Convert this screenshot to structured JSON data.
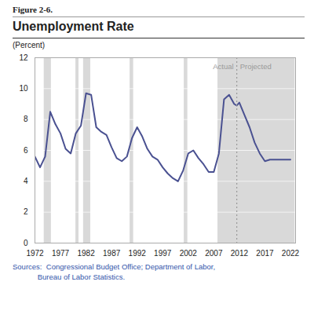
{
  "chart_data": {
    "type": "line",
    "title": "Unemployment Rate",
    "ylabel": "(Percent)",
    "annotations": [
      {
        "text": "Figure 2-6."
      },
      {
        "text": "Actual",
        "x": 2011.5,
        "y": 11.6,
        "anchor": "end"
      },
      {
        "text": "Projected",
        "x": 2011.5,
        "y": 11.6,
        "anchor": "start"
      }
    ],
    "caption": [
      "Sources:  Congressional Budget Office; Department of Labor,",
      "            Bureau of Labor Statistics."
    ],
    "x": [
      1972,
      1973,
      1974,
      1975,
      1976,
      1977,
      1978,
      1979,
      1980,
      1981,
      1982,
      1983,
      1984,
      1985,
      1986,
      1987,
      1988,
      1989,
      1990,
      1991,
      1992,
      1993,
      1994,
      1995,
      1996,
      1997,
      1998,
      1999,
      2000,
      2001,
      2002,
      2003,
      2004,
      2005,
      2006,
      2007,
      2008,
      2009,
      2010,
      2011,
      2011.5,
      2012,
      2013,
      2014,
      2015,
      2016,
      2017,
      2018,
      2019,
      2020,
      2021,
      2022
    ],
    "values": [
      5.6,
      4.9,
      5.6,
      8.5,
      7.7,
      7.1,
      6.1,
      5.8,
      7.1,
      7.6,
      9.7,
      9.6,
      7.5,
      7.2,
      7.0,
      6.2,
      5.5,
      5.3,
      5.6,
      6.8,
      7.5,
      6.9,
      6.1,
      5.6,
      5.4,
      4.9,
      4.5,
      4.2,
      4.0,
      4.7,
      5.8,
      6.0,
      5.5,
      5.1,
      4.6,
      4.6,
      5.8,
      9.3,
      9.6,
      9.0,
      8.9,
      9.1,
      8.3,
      7.5,
      6.5,
      5.8,
      5.3,
      5.4,
      5.4,
      5.4,
      5.4,
      5.4
    ],
    "color": "#4a5191",
    "bands": [
      [
        1973.8,
        1975.2
      ],
      [
        1980.0,
        1980.6
      ],
      [
        1981.5,
        1982.9
      ],
      [
        1990.6,
        1991.3
      ],
      [
        2001.2,
        2001.9
      ],
      [
        2007.8,
        2022.9
      ]
    ],
    "band_color": "#d9d9d9",
    "vlines": [
      {
        "x": 2011.5,
        "color": "#999999",
        "line_style": "dotted"
      }
    ],
    "xlim": [
      1972,
      2023
    ],
    "ylim": [
      0,
      12
    ],
    "xticks": [
      1972,
      1977,
      1982,
      1987,
      1992,
      1997,
      2002,
      2007,
      2012,
      2017,
      2022
    ],
    "yticks": [
      0,
      2,
      4,
      6,
      8,
      10,
      12
    ],
    "grid": true
  }
}
